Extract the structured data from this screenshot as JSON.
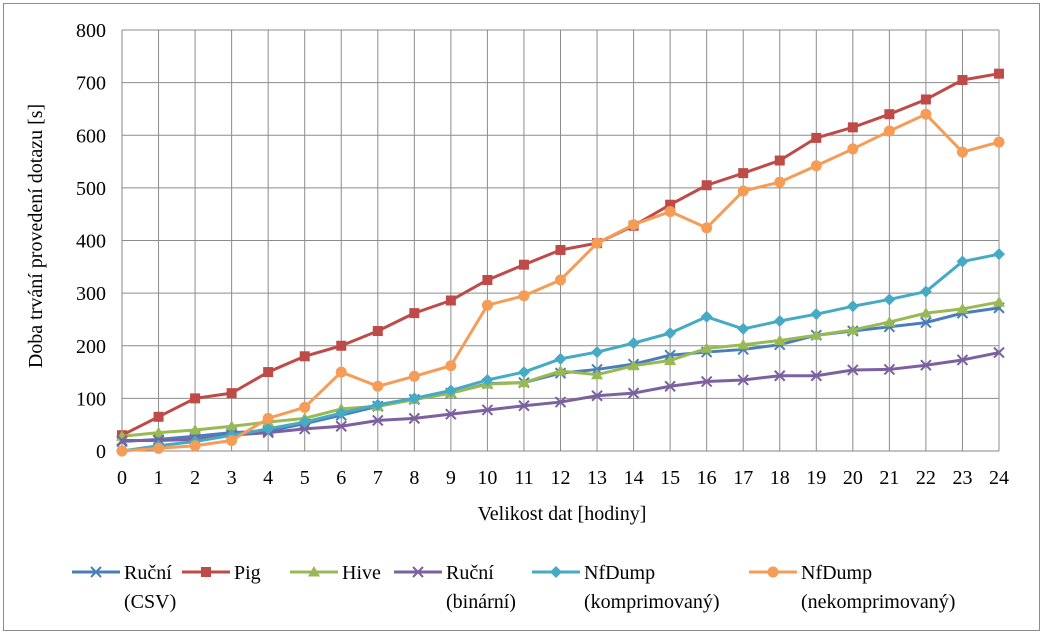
{
  "chart_data": {
    "type": "line",
    "title": "",
    "xlabel": "Velikost dat [hodiny]",
    "ylabel": "Doba trvání provedení dotazu [s]",
    "ylim": [
      0,
      800
    ],
    "yticks": [
      0,
      100,
      200,
      300,
      400,
      500,
      600,
      700,
      800
    ],
    "grid": true,
    "legend_position": "bottom",
    "x": [
      0,
      1,
      2,
      3,
      4,
      5,
      6,
      7,
      8,
      9,
      10,
      11,
      12,
      13,
      14,
      15,
      16,
      17,
      18,
      19,
      20,
      21,
      22,
      23,
      24
    ],
    "series": [
      {
        "name": "Ruční (CSV)",
        "name_lines": [
          "Ruční",
          "(CSV)"
        ],
        "color": "#4a7ebb",
        "marker": "x",
        "values": [
          18,
          22,
          28,
          35,
          38,
          52,
          68,
          85,
          98,
          110,
          128,
          130,
          148,
          155,
          165,
          182,
          188,
          193,
          202,
          220,
          228,
          236,
          244,
          262,
          272
        ]
      },
      {
        "name": "Pig",
        "name_lines": [
          "Pig"
        ],
        "color": "#be4b48",
        "marker": "square",
        "values": [
          30,
          65,
          100,
          110,
          150,
          180,
          200,
          228,
          262,
          286,
          325,
          354,
          382,
          395,
          428,
          468,
          505,
          528,
          552,
          595,
          615,
          640,
          668,
          705,
          717
        ]
      },
      {
        "name": "Hive",
        "name_lines": [
          "Hive"
        ],
        "color": "#98b954",
        "marker": "triangle",
        "values": [
          28,
          35,
          40,
          47,
          55,
          62,
          80,
          85,
          98,
          110,
          127,
          130,
          152,
          145,
          162,
          172,
          195,
          202,
          210,
          220,
          230,
          245,
          262,
          270,
          283
        ]
      },
      {
        "name": "Ruční (binární)",
        "name_lines": [
          "Ruční",
          "(binární)"
        ],
        "color": "#7d60a0",
        "marker": "x",
        "values": [
          20,
          20,
          22,
          30,
          35,
          42,
          47,
          58,
          62,
          70,
          78,
          86,
          93,
          105,
          110,
          123,
          132,
          135,
          143,
          143,
          154,
          155,
          163,
          173,
          187
        ]
      },
      {
        "name": "NfDump (komprimovaný)",
        "name_lines": [
          "NfDump",
          "(komprimovaný)"
        ],
        "color": "#46aac5",
        "marker": "diamond",
        "values": [
          0,
          10,
          18,
          30,
          42,
          55,
          72,
          88,
          100,
          115,
          135,
          150,
          175,
          188,
          205,
          224,
          255,
          232,
          247,
          260,
          275,
          288,
          303,
          360,
          374
        ]
      },
      {
        "name": "NfDump (nekomprimovaný)",
        "name_lines": [
          "NfDump",
          "(nekomprimovaný)"
        ],
        "color": "#f59d56",
        "marker": "circle",
        "values": [
          0,
          5,
          10,
          20,
          62,
          83,
          150,
          123,
          142,
          162,
          277,
          295,
          325,
          395,
          430,
          455,
          424,
          494,
          511,
          542,
          574,
          608,
          640,
          568,
          587
        ]
      }
    ]
  }
}
